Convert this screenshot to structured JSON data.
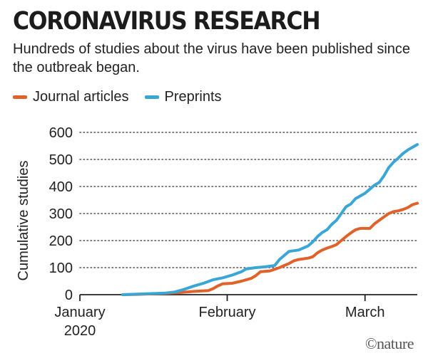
{
  "header": {
    "title": "CORONAVIRUS RESEARCH",
    "subtitle": "Hundreds of studies about the virus have been published since the outbreak began."
  },
  "brand": "©nature",
  "chart_data": {
    "type": "line",
    "title": "CORONAVIRUS RESEARCH",
    "subtitle": "Hundreds of studies about the virus have been published since the outbreak began.",
    "xlabel": "",
    "ylabel": "Cumulative studies",
    "ylim": [
      0,
      600
    ],
    "yticks": [
      0,
      100,
      200,
      300,
      400,
      500,
      600
    ],
    "xticks": [
      {
        "date": "2020-01-01",
        "label": "January",
        "label2": "2020"
      },
      {
        "date": "2020-02-01",
        "label": "February",
        "label2": ""
      },
      {
        "date": "2020-03-01",
        "label": "March",
        "label2": ""
      }
    ],
    "xlim": [
      "2020-01-01",
      "2020-03-12"
    ],
    "grid": "horizontal-dotted",
    "legend_position": "top-left",
    "series": [
      {
        "name": "Journal articles",
        "color": "#e0622a",
        "points": [
          [
            "2020-01-10",
            0
          ],
          [
            "2020-01-13",
            1
          ],
          [
            "2020-01-16",
            3
          ],
          [
            "2020-01-19",
            5
          ],
          [
            "2020-01-22",
            8
          ],
          [
            "2020-01-25",
            12
          ],
          [
            "2020-01-28",
            15
          ],
          [
            "2020-01-29",
            22
          ],
          [
            "2020-01-30",
            32
          ],
          [
            "2020-01-31",
            40
          ],
          [
            "2020-02-02",
            42
          ],
          [
            "2020-02-04",
            50
          ],
          [
            "2020-02-06",
            60
          ],
          [
            "2020-02-07",
            70
          ],
          [
            "2020-02-08",
            85
          ],
          [
            "2020-02-10",
            88
          ],
          [
            "2020-02-12",
            100
          ],
          [
            "2020-02-13",
            108
          ],
          [
            "2020-02-14",
            115
          ],
          [
            "2020-02-15",
            125
          ],
          [
            "2020-02-16",
            130
          ],
          [
            "2020-02-18",
            135
          ],
          [
            "2020-02-19",
            140
          ],
          [
            "2020-02-20",
            155
          ],
          [
            "2020-02-21",
            165
          ],
          [
            "2020-02-22",
            172
          ],
          [
            "2020-02-23",
            178
          ],
          [
            "2020-02-24",
            185
          ],
          [
            "2020-02-25",
            200
          ],
          [
            "2020-02-26",
            215
          ],
          [
            "2020-02-27",
            228
          ],
          [
            "2020-02-28",
            240
          ],
          [
            "2020-02-29",
            245
          ],
          [
            "2020-03-02",
            245
          ],
          [
            "2020-03-03",
            262
          ],
          [
            "2020-03-04",
            275
          ],
          [
            "2020-03-05",
            288
          ],
          [
            "2020-03-06",
            300
          ],
          [
            "2020-03-07",
            307
          ],
          [
            "2020-03-08",
            310
          ],
          [
            "2020-03-09",
            315
          ],
          [
            "2020-03-10",
            322
          ],
          [
            "2020-03-11",
            333
          ],
          [
            "2020-03-12",
            338
          ]
        ]
      },
      {
        "name": "Preprints",
        "color": "#3aa6d6",
        "points": [
          [
            "2020-01-10",
            0
          ],
          [
            "2020-01-13",
            2
          ],
          [
            "2020-01-16",
            4
          ],
          [
            "2020-01-19",
            6
          ],
          [
            "2020-01-21",
            10
          ],
          [
            "2020-01-23",
            20
          ],
          [
            "2020-01-25",
            32
          ],
          [
            "2020-01-27",
            42
          ],
          [
            "2020-01-29",
            55
          ],
          [
            "2020-01-31",
            62
          ],
          [
            "2020-02-02",
            72
          ],
          [
            "2020-02-04",
            85
          ],
          [
            "2020-02-05",
            95
          ],
          [
            "2020-02-07",
            100
          ],
          [
            "2020-02-09",
            103
          ],
          [
            "2020-02-11",
            108
          ],
          [
            "2020-02-12",
            130
          ],
          [
            "2020-02-13",
            145
          ],
          [
            "2020-02-14",
            160
          ],
          [
            "2020-02-16",
            165
          ],
          [
            "2020-02-18",
            180
          ],
          [
            "2020-02-19",
            195
          ],
          [
            "2020-02-20",
            215
          ],
          [
            "2020-02-21",
            230
          ],
          [
            "2020-02-22",
            240
          ],
          [
            "2020-02-23",
            260
          ],
          [
            "2020-02-24",
            275
          ],
          [
            "2020-02-25",
            300
          ],
          [
            "2020-02-26",
            325
          ],
          [
            "2020-02-27",
            335
          ],
          [
            "2020-02-28",
            355
          ],
          [
            "2020-02-29",
            365
          ],
          [
            "2020-03-01",
            375
          ],
          [
            "2020-03-02",
            390
          ],
          [
            "2020-03-03",
            405
          ],
          [
            "2020-03-04",
            415
          ],
          [
            "2020-03-05",
            440
          ],
          [
            "2020-03-06",
            470
          ],
          [
            "2020-03-07",
            490
          ],
          [
            "2020-03-08",
            505
          ],
          [
            "2020-03-09",
            522
          ],
          [
            "2020-03-10",
            535
          ],
          [
            "2020-03-11",
            545
          ],
          [
            "2020-03-12",
            555
          ]
        ]
      }
    ]
  }
}
